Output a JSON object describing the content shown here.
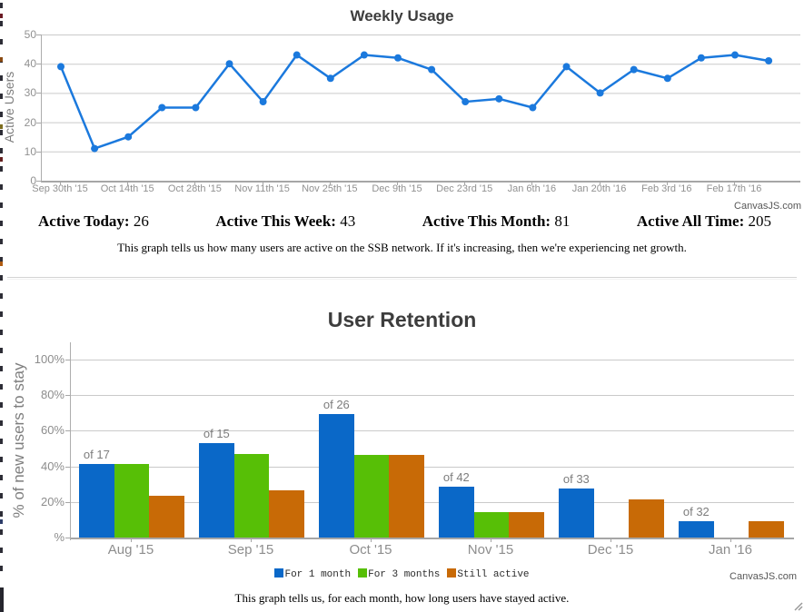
{
  "chart_data": [
    {
      "type": "line",
      "title": "Weekly Usage",
      "ylabel": "Active Users",
      "ylim": [
        0,
        50
      ],
      "y_tick_labels": [
        "50",
        "40",
        "30",
        "20",
        "10",
        "0"
      ],
      "x_tick_labels": [
        "Sep 30th '15",
        "Oct 14th '15",
        "Oct 28th '15",
        "Nov 11th '15",
        "Nov 25th '15",
        "Dec 9th '15",
        "Dec 23rd '15",
        "Jan 6th '16",
        "Jan 20th '16",
        "Feb 3rd '16",
        "Feb 17th '16"
      ],
      "x_note": "weekly data points; axis labels every 2 weeks",
      "series": [
        {
          "name": "Active Users",
          "color": "#1b79dd",
          "values": [
            39,
            11,
            15,
            25,
            25,
            40,
            27,
            43,
            35,
            43,
            42,
            38,
            27,
            28,
            25,
            39,
            30,
            38,
            35,
            42,
            43,
            41
          ]
        }
      ],
      "grid": true,
      "credit": "CanvasJS.com"
    },
    {
      "type": "bar",
      "title": "User Retention",
      "ylabel": "% of new users to stay",
      "ylim": [
        0,
        100
      ],
      "y_tick_labels": [
        "100%",
        "80%",
        "60%",
        "40%",
        "20%",
        "%"
      ],
      "categories": [
        "Aug '15",
        "Sep '15",
        "Oct '15",
        "Nov '15",
        "Dec '15",
        "Jan '16"
      ],
      "index_labels": [
        "of 17",
        "of 15",
        "of 26",
        "of 42",
        "of 33",
        "of 32"
      ],
      "series": [
        {
          "name": "For 1 month",
          "color": "#0a68c8",
          "values": [
            41.2,
            53.3,
            69.2,
            28.6,
            27.3,
            9.4
          ]
        },
        {
          "name": "For 3 months",
          "color": "#57bf06",
          "values": [
            41.2,
            46.7,
            46.2,
            14.3,
            0,
            0
          ]
        },
        {
          "name": "Still active",
          "color": "#c86a06",
          "values": [
            23.5,
            26.7,
            46.2,
            14.3,
            21.2,
            9.4
          ]
        }
      ],
      "legend_position": "bottom",
      "grid": true,
      "credit": "CanvasJS.com"
    }
  ],
  "stats": [
    {
      "label": "Active Today:",
      "value": "26"
    },
    {
      "label": "Active This Week:",
      "value": "43"
    },
    {
      "label": "Active This Month:",
      "value": "81"
    },
    {
      "label": "Active All Time:",
      "value": "205"
    }
  ],
  "descriptions": [
    "This graph tells us how many users are active on the SSB network. If it's increasing, then we're experiencing net growth.",
    "This graph tells us, for each month, how long users have stayed active."
  ],
  "edge_artifacts": {
    "strip_color": "#2d2d36",
    "accent_colors": [
      "#6b1a24",
      "#8a4a12",
      "#7d6d1e",
      "#65201f",
      "#b05c12",
      "#2c3c68",
      "#8a2020"
    ],
    "bottom_color": "#25252d"
  }
}
